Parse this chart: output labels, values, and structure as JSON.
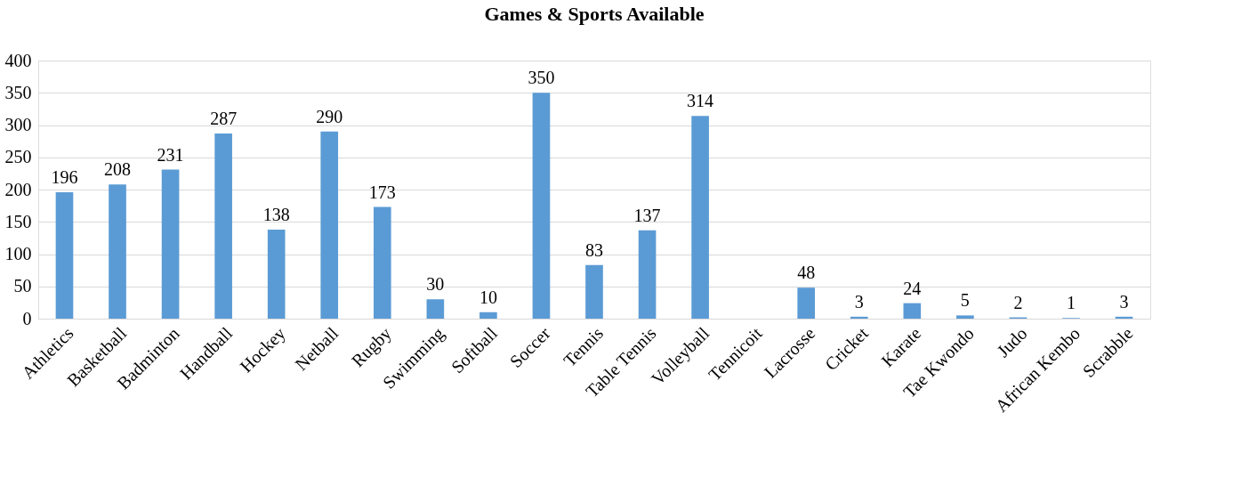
{
  "chart_data": {
    "type": "bar",
    "title": "Games & Sports Available",
    "categories": [
      "Athletics",
      "Basketball",
      "Badminton",
      "Handball",
      "Hockey",
      "Netball",
      "Rugby",
      "Swimming",
      "Softball",
      "Soccer",
      "Tennis",
      "Table Tennis",
      "Volleyball",
      "Tennicoit",
      "Lacrosse",
      "Cricket",
      "Karate",
      "Tae Kwondo",
      "Judo",
      "African Kembo",
      "Scrabble"
    ],
    "values": [
      196,
      208,
      231,
      287,
      138,
      290,
      173,
      30,
      10,
      350,
      83,
      137,
      314,
      null,
      48,
      3,
      24,
      5,
      2,
      1,
      3
    ],
    "color": "#5b9bd5",
    "ylim": [
      0,
      400
    ],
    "yticks": [
      0,
      50,
      100,
      150,
      200,
      250,
      300,
      350,
      400
    ],
    "grid": "y",
    "data_labels": true
  }
}
